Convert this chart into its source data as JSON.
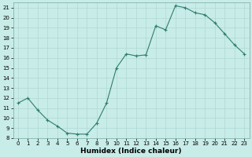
{
  "x": [
    0,
    1,
    2,
    3,
    4,
    5,
    6,
    7,
    8,
    9,
    10,
    11,
    12,
    13,
    14,
    15,
    16,
    17,
    18,
    19,
    20,
    21,
    22,
    23
  ],
  "y": [
    11.5,
    12.0,
    10.8,
    9.8,
    9.2,
    8.5,
    8.4,
    8.4,
    9.5,
    11.5,
    15.0,
    16.4,
    16.2,
    16.3,
    19.2,
    18.8,
    21.2,
    21.0,
    20.5,
    20.3,
    19.5,
    18.4,
    17.3,
    16.4
  ],
  "line_color": "#2e7d6e",
  "marker": "+",
  "bg_color": "#c8ece8",
  "grid_color": "#b0d8d4",
  "xlabel": "Humidex (Indice chaleur)",
  "ylim": [
    8,
    21.5
  ],
  "xlim": [
    -0.5,
    23.5
  ],
  "yticks": [
    8,
    9,
    10,
    11,
    12,
    13,
    14,
    15,
    16,
    17,
    18,
    19,
    20,
    21
  ],
  "xticks": [
    0,
    1,
    2,
    3,
    4,
    5,
    6,
    7,
    8,
    9,
    10,
    11,
    12,
    13,
    14,
    15,
    16,
    17,
    18,
    19,
    20,
    21,
    22,
    23
  ],
  "tick_fontsize": 5.0,
  "label_fontsize": 6.5,
  "linewidth": 0.8,
  "markersize": 3.0,
  "markeredgewidth": 0.8
}
